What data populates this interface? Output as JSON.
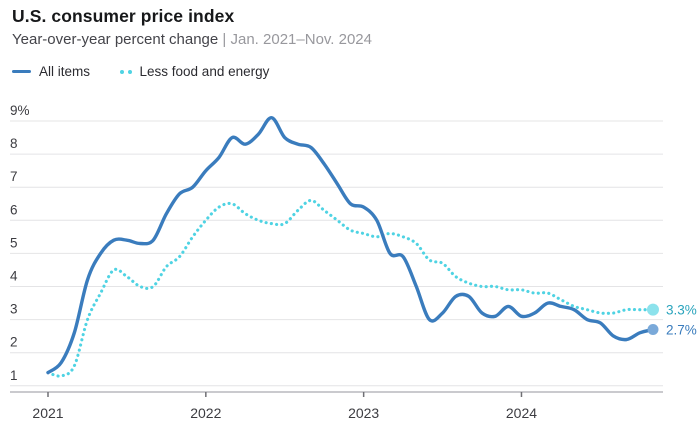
{
  "header": {
    "title": "U.S. consumer price index",
    "subtitle_main": "Year-over-year percent change",
    "subtitle_separator": "|",
    "subtitle_range": "Jan. 2021–Nov. 2024"
  },
  "chart_data": {
    "type": "line",
    "title": "U.S. consumer price index",
    "subtitle": "Year-over-year percent change",
    "date_range_label": "Jan. 2021–Nov. 2024",
    "x_interval": "month",
    "x_start": "Jan. 2021",
    "x_end": "Nov. 2024",
    "x_tick_labels": [
      "2021",
      "2022",
      "2023",
      "2024"
    ],
    "x_tick_month_index": [
      0,
      12,
      24,
      36
    ],
    "y_axis": {
      "ticks": [
        1,
        2,
        3,
        4,
        5,
        6,
        7,
        8,
        9
      ],
      "top_label": "9%",
      "lim": [
        1,
        9
      ],
      "unit": "percent"
    },
    "grid": true,
    "legend_position": "top-left",
    "series": [
      {
        "name": "All items",
        "style": "solid",
        "color": "#3a7cbd",
        "end_dot_color": "#7aa9d9",
        "end_label": "2.7%",
        "end_label_color": "#3a7cbd",
        "values": [
          1.4,
          1.7,
          2.6,
          4.2,
          5.0,
          5.4,
          5.4,
          5.3,
          5.4,
          6.2,
          6.8,
          7.0,
          7.5,
          7.9,
          8.5,
          8.3,
          8.6,
          9.1,
          8.5,
          8.3,
          8.2,
          7.7,
          7.1,
          6.5,
          6.4,
          6.0,
          5.0,
          4.9,
          4.0,
          3.0,
          3.2,
          3.7,
          3.7,
          3.2,
          3.1,
          3.4,
          3.1,
          3.2,
          3.5,
          3.4,
          3.3,
          3.0,
          2.9,
          2.5,
          2.4,
          2.6,
          2.7
        ]
      },
      {
        "name": "Less food and energy",
        "style": "dotted",
        "color": "#4fd3e3",
        "end_dot_color": "#8ce2ec",
        "end_label": "3.3%",
        "end_label_color": "#2aa4bd",
        "values": [
          1.4,
          1.3,
          1.6,
          3.0,
          3.8,
          4.5,
          4.3,
          4.0,
          4.0,
          4.6,
          4.9,
          5.5,
          6.0,
          6.4,
          6.5,
          6.2,
          6.0,
          5.9,
          5.9,
          6.3,
          6.6,
          6.3,
          6.0,
          5.7,
          5.6,
          5.5,
          5.6,
          5.5,
          5.3,
          4.8,
          4.7,
          4.3,
          4.1,
          4.0,
          4.0,
          3.9,
          3.9,
          3.8,
          3.8,
          3.6,
          3.4,
          3.3,
          3.2,
          3.2,
          3.3,
          3.3,
          3.3
        ]
      }
    ],
    "style": {
      "grid_color": "#e4e4e6",
      "axis_color": "#b9b9bd",
      "tick_color": "#6f6f74",
      "axis_label_color": "#3c3c41"
    }
  }
}
